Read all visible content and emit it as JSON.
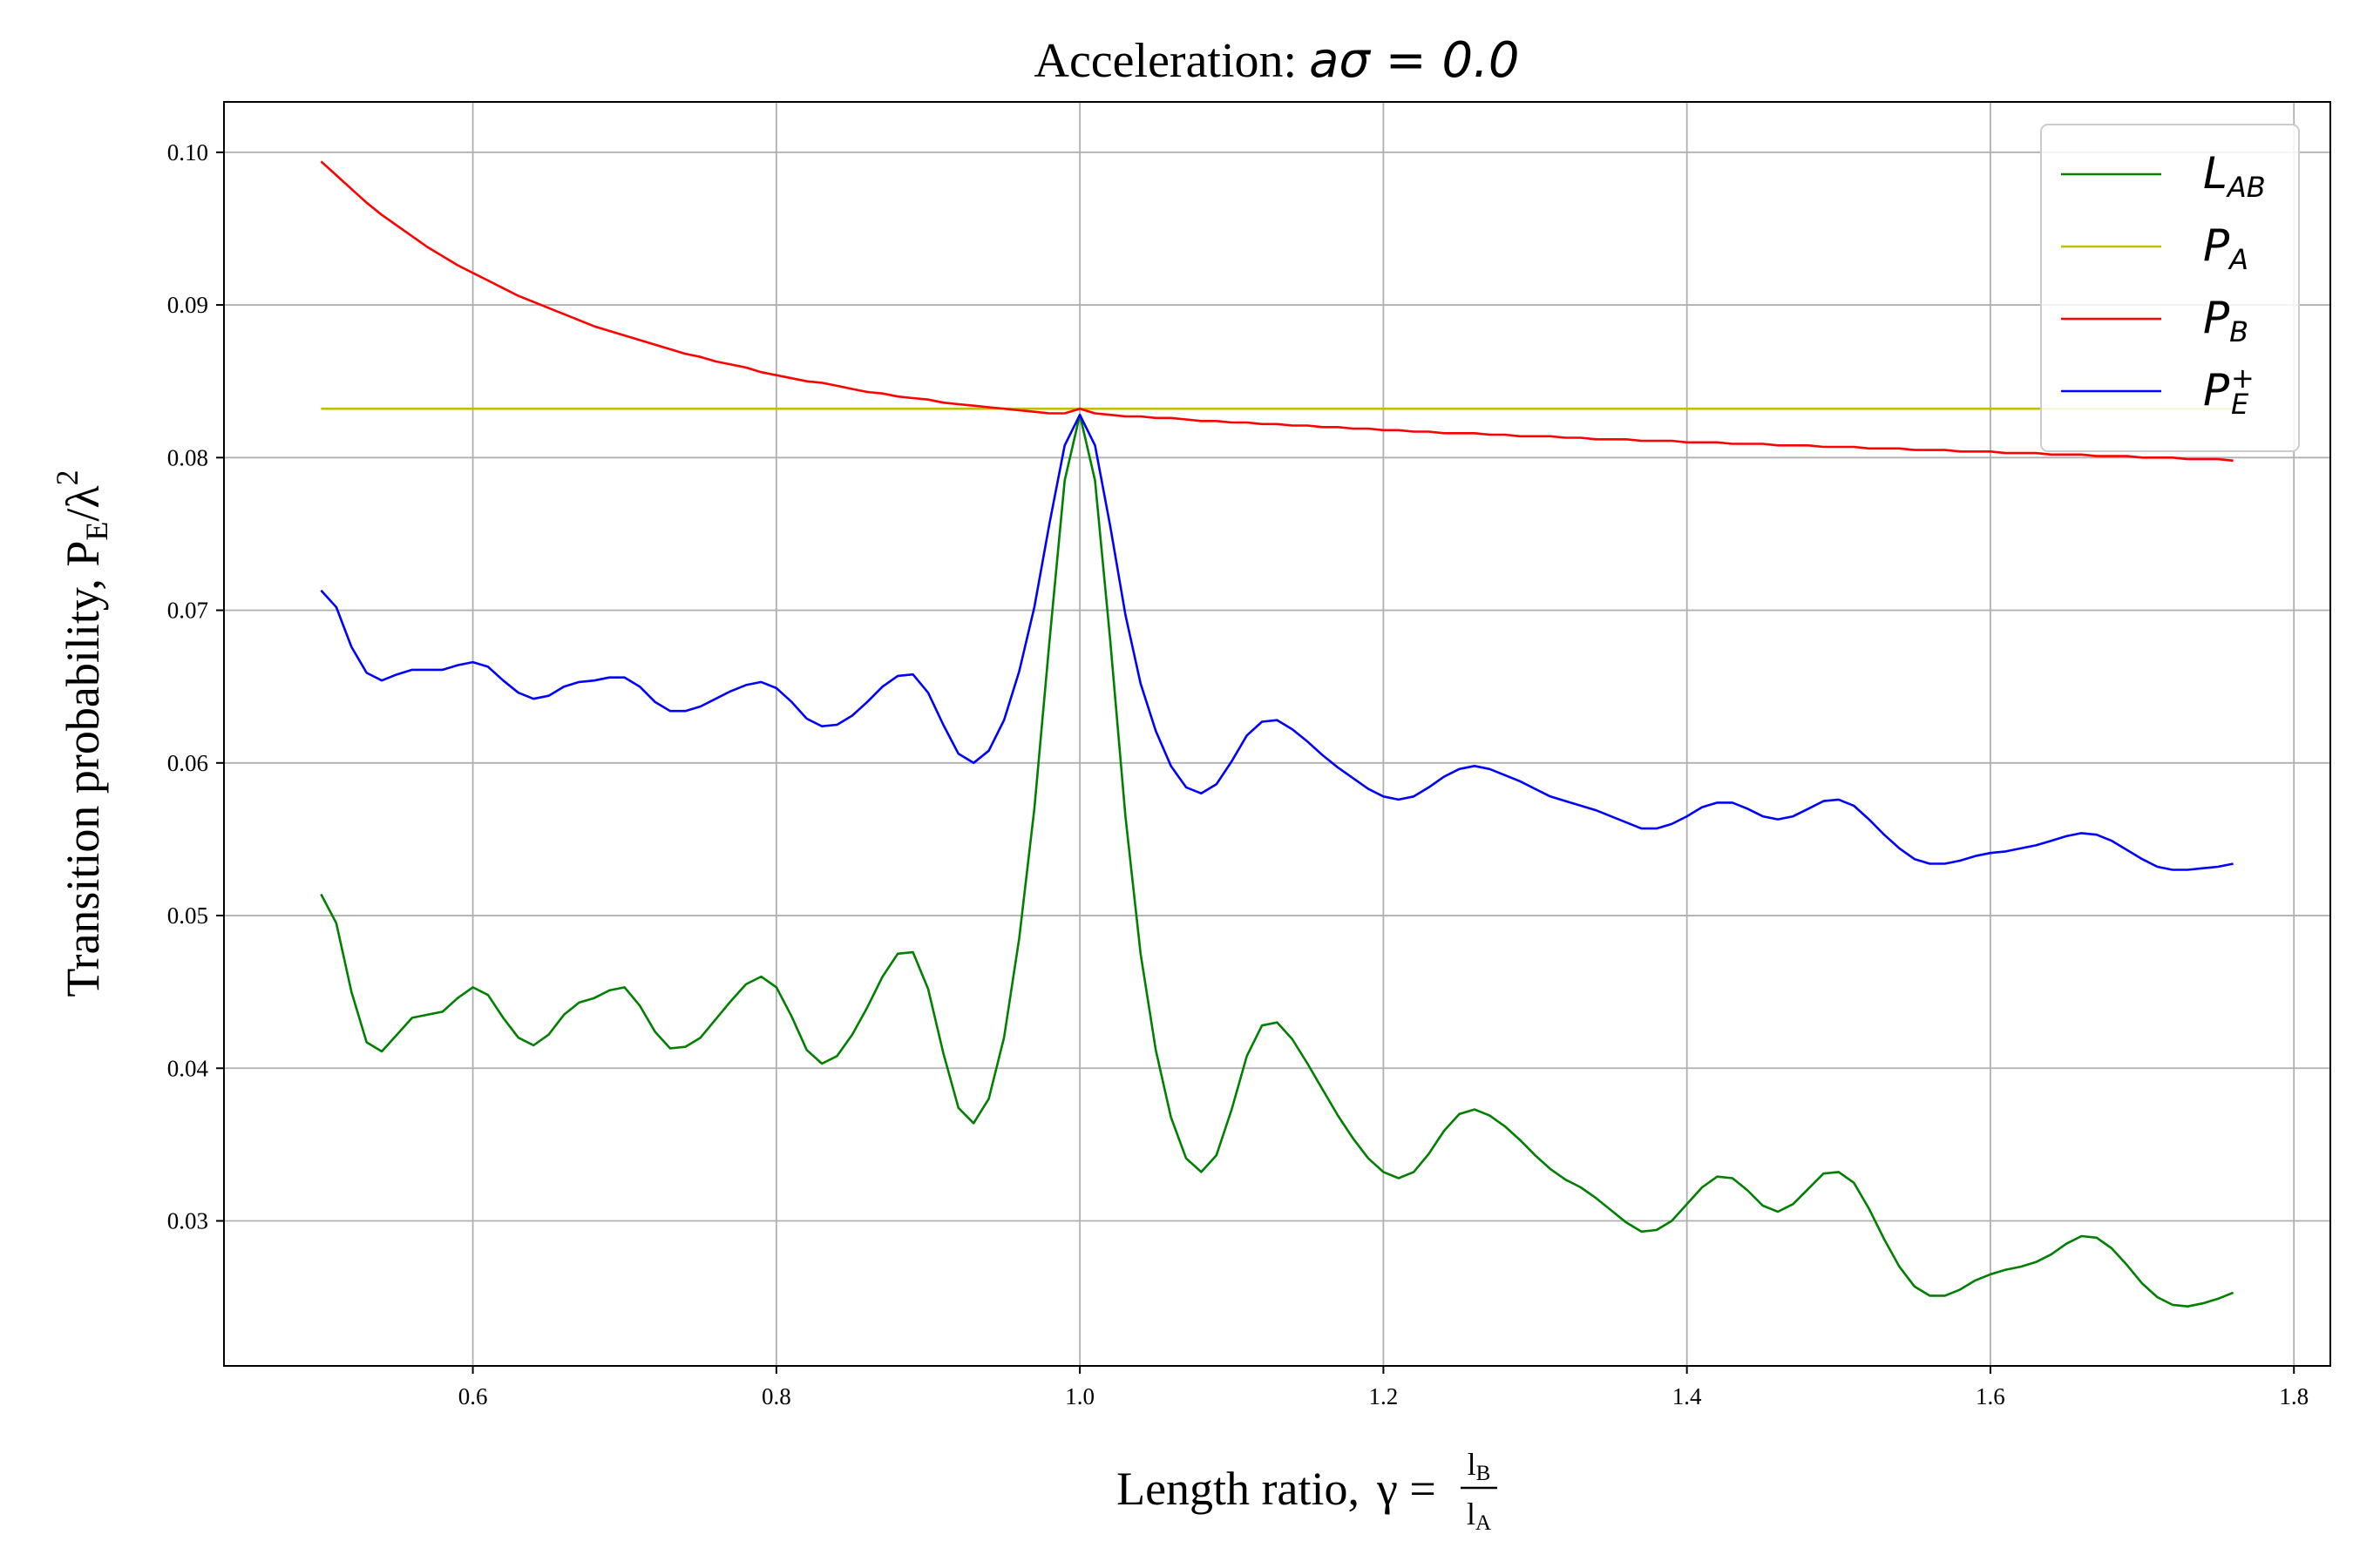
{
  "chart_data": {
    "type": "line",
    "title": {
      "prefix": "Acceleration: ",
      "math": "aσ = 0.0"
    },
    "xlabel": {
      "text": "Length ratio,",
      "symbol": "γ",
      "frac_num": "l",
      "frac_num_sub": "B",
      "frac_den": "l",
      "frac_den_sub": "A"
    },
    "ylabel": {
      "text": "Transition probability,",
      "main": "P",
      "sub": "E",
      "rest": "/λ",
      "sup": "2"
    },
    "xlim": [
      0.436,
      1.824
    ],
    "ylim": [
      0.0205,
      0.1033
    ],
    "xticks": [
      "0.6",
      "0.8",
      "1.0",
      "1.2",
      "1.4",
      "1.6",
      "1.8"
    ],
    "yticks": [
      "0.03",
      "0.04",
      "0.05",
      "0.06",
      "0.07",
      "0.08",
      "0.09",
      "0.10"
    ],
    "grid": true,
    "legend_position": "top-right",
    "x": [
      0.5,
      0.51,
      0.52,
      0.53,
      0.54,
      0.55,
      0.56,
      0.57,
      0.58,
      0.59,
      0.6,
      0.61,
      0.62,
      0.63,
      0.64,
      0.65,
      0.66,
      0.67,
      0.68,
      0.69,
      0.7,
      0.71,
      0.72,
      0.73,
      0.74,
      0.75,
      0.76,
      0.77,
      0.78,
      0.79,
      0.8,
      0.81,
      0.82,
      0.83,
      0.84,
      0.85,
      0.86,
      0.87,
      0.88,
      0.89,
      0.9,
      0.91,
      0.92,
      0.93,
      0.94,
      0.95,
      0.96,
      0.97,
      0.98,
      0.99,
      1.0,
      1.01,
      1.02,
      1.03,
      1.04,
      1.05,
      1.06,
      1.07,
      1.08,
      1.09,
      1.1,
      1.11,
      1.12,
      1.13,
      1.14,
      1.15,
      1.16,
      1.17,
      1.18,
      1.19,
      1.2,
      1.21,
      1.22,
      1.23,
      1.24,
      1.25,
      1.26,
      1.27,
      1.28,
      1.29,
      1.3,
      1.31,
      1.32,
      1.33,
      1.34,
      1.35,
      1.36,
      1.37,
      1.38,
      1.39,
      1.4,
      1.41,
      1.42,
      1.43,
      1.44,
      1.45,
      1.46,
      1.47,
      1.48,
      1.49,
      1.5,
      1.51,
      1.52,
      1.53,
      1.54,
      1.55,
      1.56,
      1.57,
      1.58,
      1.59,
      1.6,
      1.61,
      1.62,
      1.63,
      1.64,
      1.65,
      1.66,
      1.67,
      1.68,
      1.69,
      1.7,
      1.71,
      1.72,
      1.73,
      1.74,
      1.75,
      1.76
    ],
    "series": [
      {
        "name": "L",
        "name_sub": "AB",
        "name_sup": "",
        "color": "#008000",
        "values": [
          0.0514,
          0.0495,
          0.045,
          0.0417,
          0.0411,
          0.0422,
          0.0433,
          0.0435,
          0.0437,
          0.0446,
          0.0453,
          0.0448,
          0.0433,
          0.042,
          0.0415,
          0.0422,
          0.0435,
          0.0443,
          0.0446,
          0.0451,
          0.0453,
          0.0441,
          0.0424,
          0.0413,
          0.0414,
          0.042,
          0.0432,
          0.0444,
          0.0455,
          0.046,
          0.0453,
          0.0434,
          0.0412,
          0.0403,
          0.0408,
          0.0422,
          0.044,
          0.046,
          0.0475,
          0.0476,
          0.0452,
          0.041,
          0.0374,
          0.0364,
          0.038,
          0.042,
          0.0485,
          0.057,
          0.068,
          0.0785,
          0.0828,
          0.0785,
          0.068,
          0.0565,
          0.0475,
          0.0412,
          0.0368,
          0.0341,
          0.0332,
          0.0343,
          0.0373,
          0.0408,
          0.0428,
          0.043,
          0.0419,
          0.0403,
          0.0386,
          0.0369,
          0.0354,
          0.0341,
          0.0332,
          0.0328,
          0.0332,
          0.0344,
          0.0359,
          0.037,
          0.0373,
          0.0369,
          0.0362,
          0.0353,
          0.0343,
          0.0334,
          0.0327,
          0.0322,
          0.0315,
          0.0307,
          0.0299,
          0.0293,
          0.0294,
          0.03,
          0.0311,
          0.0322,
          0.0329,
          0.0328,
          0.032,
          0.031,
          0.0306,
          0.0311,
          0.0321,
          0.0331,
          0.0332,
          0.0325,
          0.0308,
          0.0288,
          0.027,
          0.0257,
          0.0251,
          0.0251,
          0.0255,
          0.0261,
          0.0265,
          0.0268,
          0.027,
          0.0273,
          0.0278,
          0.0285,
          0.029,
          0.0289,
          0.0282,
          0.0271,
          0.0259,
          0.025,
          0.0245,
          0.0244,
          0.0246,
          0.0249,
          0.0253
        ]
      },
      {
        "name": "P",
        "name_sub": "A",
        "name_sup": "",
        "color": "#bfbf00",
        "values": [
          0.0832,
          0.0832,
          0.0832,
          0.0832,
          0.0832,
          0.0832,
          0.0832,
          0.0832,
          0.0832,
          0.0832,
          0.0832,
          0.0832,
          0.0832,
          0.0832,
          0.0832,
          0.0832,
          0.0832,
          0.0832,
          0.0832,
          0.0832,
          0.0832,
          0.0832,
          0.0832,
          0.0832,
          0.0832,
          0.0832,
          0.0832,
          0.0832,
          0.0832,
          0.0832,
          0.0832,
          0.0832,
          0.0832,
          0.0832,
          0.0832,
          0.0832,
          0.0832,
          0.0832,
          0.0832,
          0.0832,
          0.0832,
          0.0832,
          0.0832,
          0.0832,
          0.0832,
          0.0832,
          0.0832,
          0.0832,
          0.0832,
          0.0832,
          0.0832,
          0.0832,
          0.0832,
          0.0832,
          0.0832,
          0.0832,
          0.0832,
          0.0832,
          0.0832,
          0.0832,
          0.0832,
          0.0832,
          0.0832,
          0.0832,
          0.0832,
          0.0832,
          0.0832,
          0.0832,
          0.0832,
          0.0832,
          0.0832,
          0.0832,
          0.0832,
          0.0832,
          0.0832,
          0.0832,
          0.0832,
          0.0832,
          0.0832,
          0.0832,
          0.0832,
          0.0832,
          0.0832,
          0.0832,
          0.0832,
          0.0832,
          0.0832,
          0.0832,
          0.0832,
          0.0832,
          0.0832,
          0.0832,
          0.0832,
          0.0832,
          0.0832,
          0.0832,
          0.0832,
          0.0832,
          0.0832,
          0.0832,
          0.0832,
          0.0832,
          0.0832,
          0.0832,
          0.0832,
          0.0832,
          0.0832,
          0.0832,
          0.0832,
          0.0832,
          0.0832,
          0.0832,
          0.0832,
          0.0832,
          0.0832,
          0.0832,
          0.0832,
          0.0832,
          0.0832,
          0.0832,
          0.0832,
          0.0832,
          0.0832,
          0.0832,
          0.0832,
          0.0832,
          0.0832
        ]
      },
      {
        "name": "P",
        "name_sub": "B",
        "name_sup": "",
        "color": "#ff0000",
        "values": [
          0.0994,
          0.0985,
          0.0976,
          0.0967,
          0.0959,
          0.0952,
          0.0945,
          0.0938,
          0.0932,
          0.0926,
          0.0921,
          0.0916,
          0.0911,
          0.0906,
          0.0902,
          0.0898,
          0.0894,
          0.089,
          0.0886,
          0.0883,
          0.088,
          0.0877,
          0.0874,
          0.0871,
          0.0868,
          0.0866,
          0.0863,
          0.0861,
          0.0859,
          0.0856,
          0.0854,
          0.0852,
          0.085,
          0.0849,
          0.0847,
          0.0845,
          0.0843,
          0.0842,
          0.084,
          0.0839,
          0.0838,
          0.0836,
          0.0835,
          0.0834,
          0.0833,
          0.0832,
          0.0831,
          0.083,
          0.0829,
          0.0829,
          0.0832,
          0.0829,
          0.0828,
          0.0827,
          0.0827,
          0.0826,
          0.0826,
          0.0825,
          0.0824,
          0.0824,
          0.0823,
          0.0823,
          0.0822,
          0.0822,
          0.0821,
          0.0821,
          0.082,
          0.082,
          0.0819,
          0.0819,
          0.0818,
          0.0818,
          0.0817,
          0.0817,
          0.0816,
          0.0816,
          0.0816,
          0.0815,
          0.0815,
          0.0814,
          0.0814,
          0.0814,
          0.0813,
          0.0813,
          0.0812,
          0.0812,
          0.0812,
          0.0811,
          0.0811,
          0.0811,
          0.081,
          0.081,
          0.081,
          0.0809,
          0.0809,
          0.0809,
          0.0808,
          0.0808,
          0.0808,
          0.0807,
          0.0807,
          0.0807,
          0.0806,
          0.0806,
          0.0806,
          0.0805,
          0.0805,
          0.0805,
          0.0804,
          0.0804,
          0.0804,
          0.0803,
          0.0803,
          0.0803,
          0.0802,
          0.0802,
          0.0802,
          0.0801,
          0.0801,
          0.0801,
          0.08,
          0.08,
          0.08,
          0.0799,
          0.0799,
          0.0799,
          0.0798
        ]
      },
      {
        "name": "P",
        "name_sub": "E",
        "name_sup": "+",
        "color": "#0000ff",
        "values": [
          0.0713,
          0.0702,
          0.0676,
          0.0659,
          0.0654,
          0.0658,
          0.0661,
          0.0661,
          0.0661,
          0.0664,
          0.0666,
          0.0663,
          0.0654,
          0.0646,
          0.0642,
          0.0644,
          0.065,
          0.0653,
          0.0654,
          0.0656,
          0.0656,
          0.065,
          0.064,
          0.0634,
          0.0634,
          0.0637,
          0.0642,
          0.0647,
          0.0651,
          0.0653,
          0.0649,
          0.064,
          0.0629,
          0.0624,
          0.0625,
          0.0631,
          0.064,
          0.065,
          0.0657,
          0.0658,
          0.0646,
          0.0625,
          0.0606,
          0.06,
          0.0608,
          0.0628,
          0.066,
          0.0702,
          0.0757,
          0.0808,
          0.0828,
          0.0808,
          0.0755,
          0.0697,
          0.0652,
          0.0621,
          0.0598,
          0.0584,
          0.058,
          0.0586,
          0.0601,
          0.0618,
          0.0627,
          0.0628,
          0.0622,
          0.0614,
          0.0605,
          0.0597,
          0.059,
          0.0583,
          0.0578,
          0.0576,
          0.0578,
          0.0584,
          0.0591,
          0.0596,
          0.0598,
          0.0596,
          0.0592,
          0.0588,
          0.0583,
          0.0578,
          0.0575,
          0.0572,
          0.0569,
          0.0565,
          0.0561,
          0.0557,
          0.0557,
          0.056,
          0.0565,
          0.0571,
          0.0574,
          0.0574,
          0.057,
          0.0565,
          0.0563,
          0.0565,
          0.057,
          0.0575,
          0.0576,
          0.0572,
          0.0563,
          0.0553,
          0.0544,
          0.0537,
          0.0534,
          0.0534,
          0.0536,
          0.0539,
          0.0541,
          0.0542,
          0.0544,
          0.0546,
          0.0549,
          0.0552,
          0.0554,
          0.0553,
          0.0549,
          0.0543,
          0.0537,
          0.0532,
          0.053,
          0.053,
          0.0531,
          0.0532,
          0.0534
        ]
      }
    ]
  }
}
